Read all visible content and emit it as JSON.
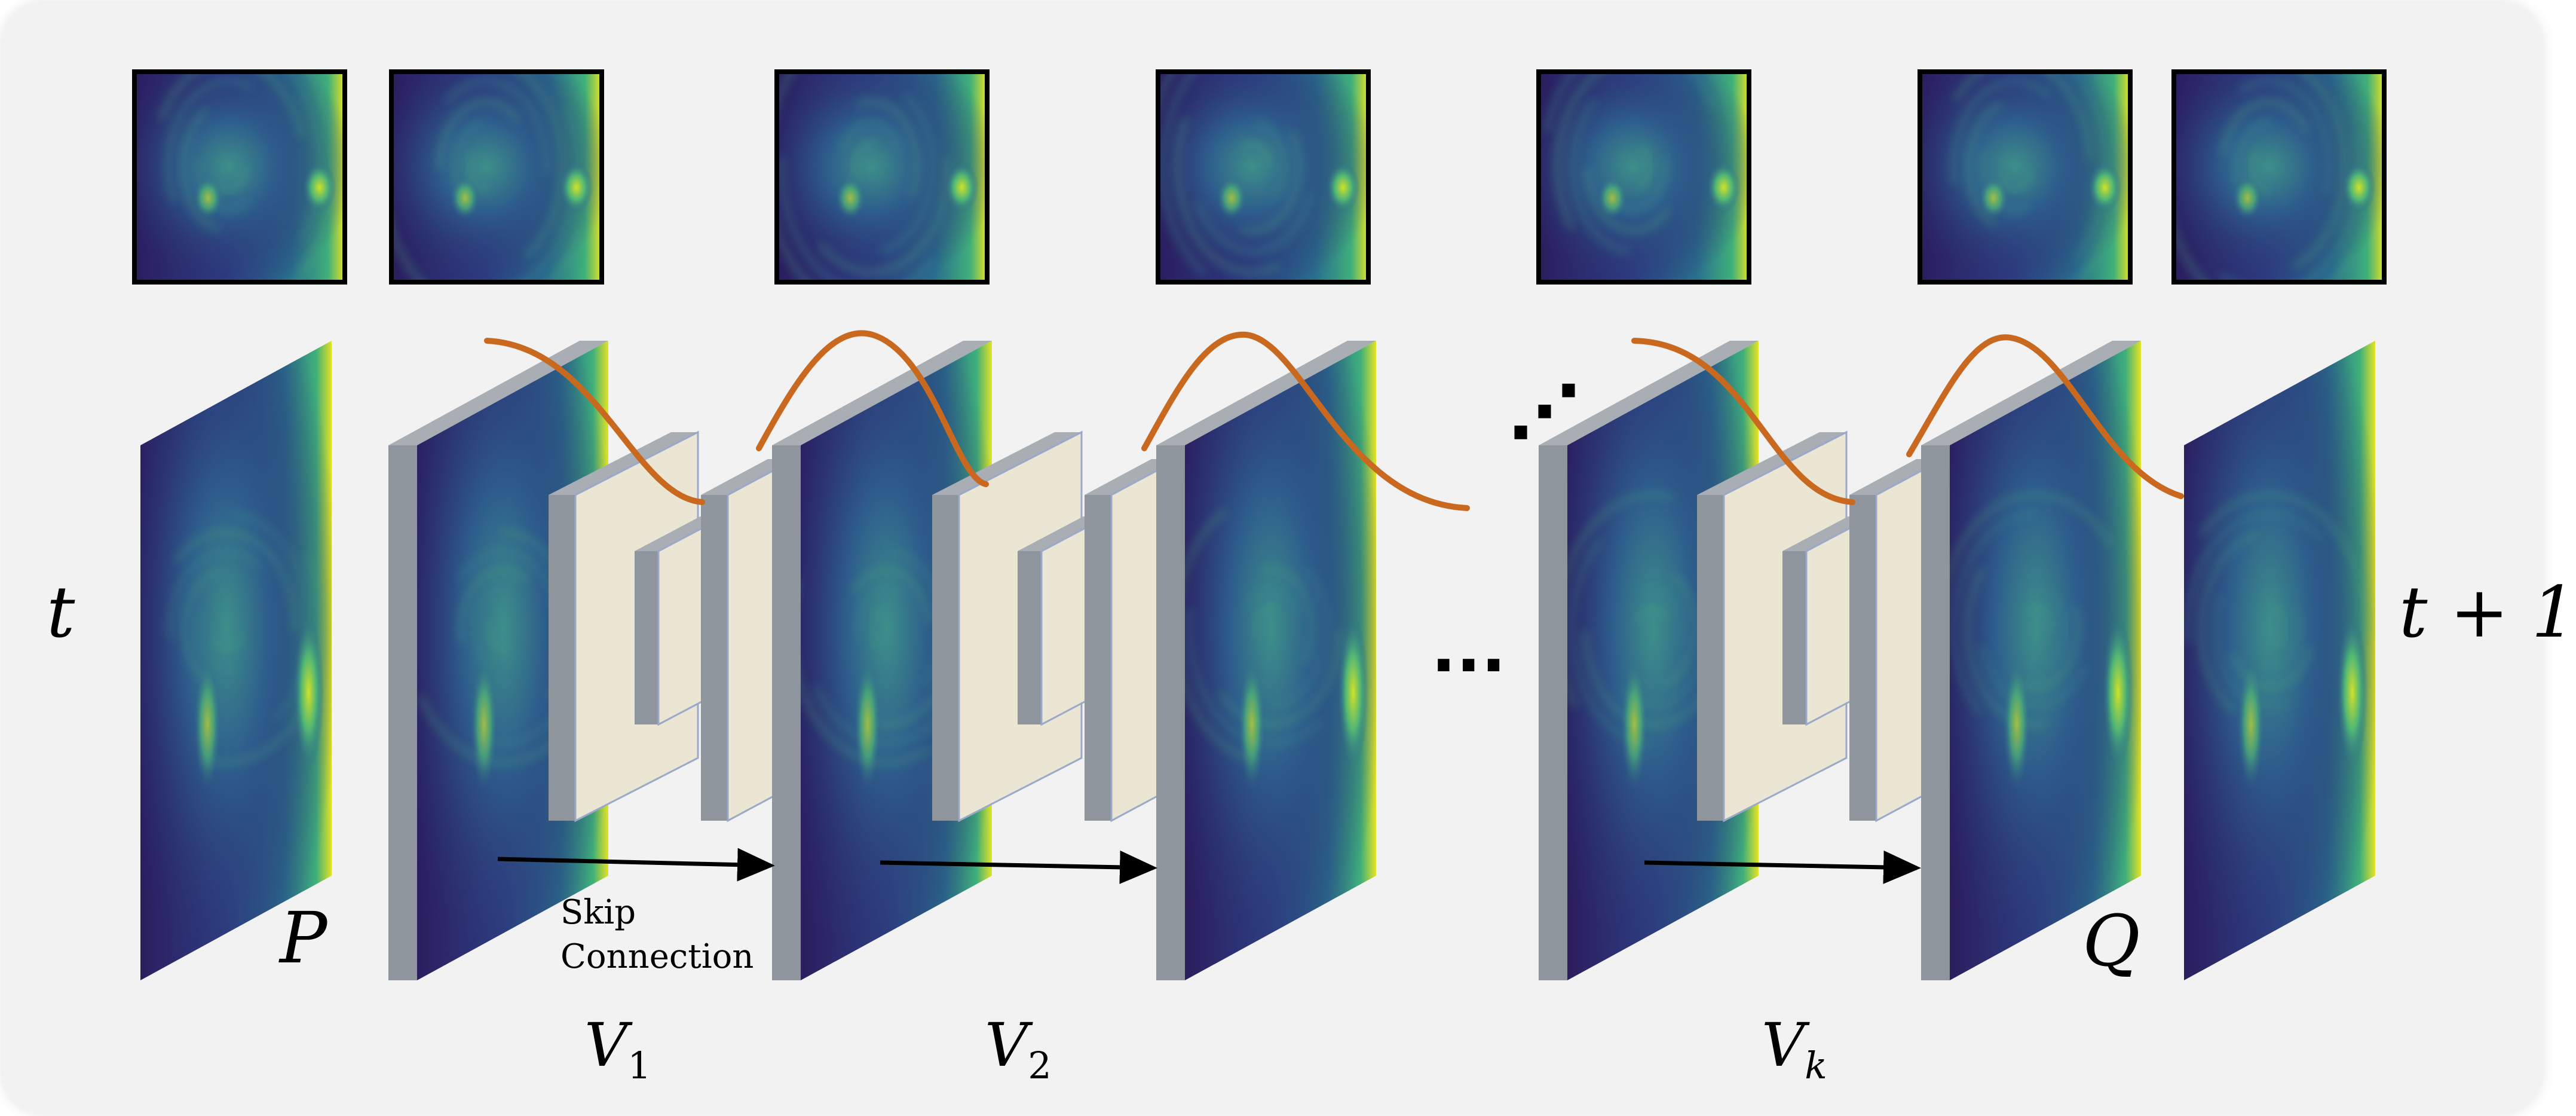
{
  "colors": {
    "background": "#f2f2f2",
    "panel_edge": "#8f959c",
    "panel_edge_side": "#a9aeb4",
    "conv_face": "#ebe5d3",
    "conv_edge": "#8d9399",
    "gaussian_curve": "#c8691f",
    "field_dark": "#2a1d5c",
    "field_mid": "#2f7a8c",
    "field_bright": "#e8e622"
  },
  "labels": {
    "time_in": "t",
    "time_out": "t + 1",
    "lift": "P",
    "project": "Q",
    "layer_1": {
      "base": "V",
      "sub": "1"
    },
    "layer_2": {
      "base": "V",
      "sub": "2"
    },
    "layer_k": {
      "base": "V",
      "sub": "k"
    },
    "skip_line1": "Skip",
    "skip_line2": "Connection",
    "ellipsis_mid": "...",
    "ellipsis_diag": "⋰"
  }
}
